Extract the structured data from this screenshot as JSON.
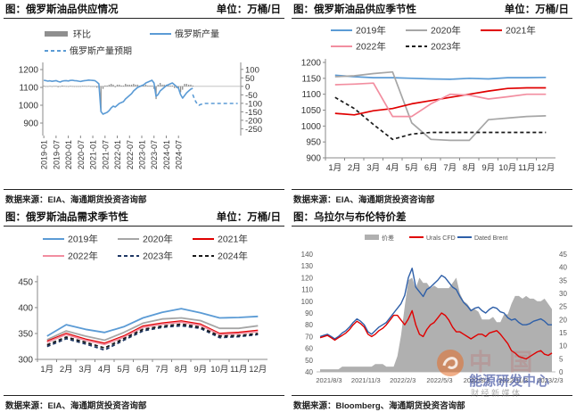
{
  "panels": [
    {
      "title": "图：俄罗斯油品供应情况",
      "unit": "单位：万桶/日",
      "source": "数据来源：EIA、海通期货投资咨询部",
      "chart_data": {
        "type": "bar+line",
        "legend": [
          "环比",
          "俄罗斯产量",
          "俄罗斯产量预期"
        ],
        "legend_position": "top",
        "x_ticks": [
          "2019-01",
          "2019-07",
          "2020-01",
          "2020-07",
          "2021-01",
          "2021-07",
          "2022-01",
          "2022-07",
          "2023-01",
          "2023-07",
          "2024-01",
          "2024-07"
        ],
        "y_left": {
          "ticks": [
            900,
            1000,
            1100,
            1200
          ],
          "lim": [
            830,
            1220
          ]
        },
        "y_right": {
          "ticks": [
            100,
            50,
            0,
            -50,
            -100,
            -150,
            -200,
            -250
          ],
          "lim": [
            -290,
            120
          ]
        },
        "series": [
          {
            "name": "俄罗斯产量",
            "axis": "left",
            "color": "#5b9bd5",
            "style": "solid",
            "values": [
              1140,
              1138,
              1135,
              1137,
              1134,
              1136,
              1138,
              1133,
              1130,
              1135,
              1137,
              1138,
              1136,
              1139,
              1140,
              1138,
              1137,
              1135,
              1133,
              1136,
              1138,
              1139,
              1141,
              1140,
              1139,
              1138,
              1130,
              1120,
              965,
              950,
              955,
              960,
              970,
              985,
              995,
              990,
              1000,
              1010,
              1015,
              1020,
              1035,
              1045,
              1055,
              1065,
              1080,
              1090,
              1100,
              1105,
              1110,
              1115,
              1125,
              1130,
              1135,
              1140,
              1125,
              1050,
              1060,
              1080,
              1090,
              1100,
              1110,
              1115,
              1120,
              1125,
              1115,
              1105,
              1095,
              1060,
              1040,
              1055,
              1070,
              1080,
              1090,
              1095
            ]
          },
          {
            "name": "俄罗斯产量预期",
            "axis": "left",
            "color": "#5b9bd5",
            "style": "dashed",
            "values": [
              1060,
              1030,
              1010,
              1000,
              1005,
              1008,
              1010,
              1010,
              1010,
              1010,
              1010,
              1010,
              1010,
              1010,
              1010,
              1010,
              1010,
              1010,
              1010,
              1010,
              1010,
              1010,
              1010
            ]
          },
          {
            "name": "环比",
            "axis": "right",
            "type": "bar",
            "color": "#8f8f8f",
            "values": [
              4,
              -2,
              -3,
              2,
              -3,
              2,
              2,
              -5,
              -3,
              5,
              2,
              1,
              -2,
              3,
              1,
              -2,
              -1,
              -2,
              -2,
              3,
              2,
              1,
              2,
              -1,
              -1,
              -1,
              -8,
              -10,
              -145,
              -15,
              5,
              5,
              10,
              15,
              10,
              -5,
              10,
              10,
              5,
              5,
              15,
              10,
              10,
              10,
              15,
              10,
              10,
              5,
              5,
              5,
              10,
              5,
              5,
              5,
              -15,
              -75,
              10,
              20,
              10,
              10,
              10,
              5,
              5,
              5,
              -10,
              -10,
              -10,
              -35,
              -20,
              15,
              15,
              10,
              10,
              5
            ]
          }
        ]
      }
    },
    {
      "title": "图：俄罗斯油品供应季节性",
      "unit": "单位：万桶/日",
      "source": "数据来源：EIA、海通期货投资咨询部",
      "chart_data": {
        "type": "line",
        "categories": [
          "1月",
          "2月",
          "3月",
          "4月",
          "5月",
          "6月",
          "7月",
          "8月",
          "9月",
          "10月",
          "11月",
          "12月"
        ],
        "y_ticks": [
          900,
          950,
          1000,
          1050,
          1100,
          1150,
          1200
        ],
        "ylim": [
          900,
          1200
        ],
        "legend_position": "top",
        "series": [
          {
            "name": "2019年",
            "color": "#5b9bd5",
            "dash": "",
            "values": [
              1160,
              1155,
              1152,
              1152,
              1150,
              1148,
              1147,
              1150,
              1148,
              1152,
              1152,
              1153
            ]
          },
          {
            "name": "2020年",
            "color": "#a6a6a6",
            "dash": "",
            "values": [
              1155,
              1158,
              1165,
              1170,
              1010,
              958,
              955,
              955,
              1020,
              1025,
              1030,
              1032
            ]
          },
          {
            "name": "2021年",
            "color": "#e00000",
            "dash": "",
            "values": [
              1040,
              1035,
              1048,
              1055,
              1070,
              1080,
              1090,
              1100,
              1110,
              1118,
              1120,
              1120
            ]
          },
          {
            "name": "2022年",
            "color": "#f28ea0",
            "dash": "",
            "values": [
              1130,
              1132,
              1135,
              1030,
              1030,
              1070,
              1100,
              1097,
              1085,
              1092,
              1100,
              1100
            ]
          },
          {
            "name": "2023年",
            "color": "#1a1a1a",
            "dash": "4,3",
            "values": [
              1090,
              1055,
              1005,
              958,
              975,
              980,
              980,
              980,
              980,
              980,
              980,
              980
            ]
          }
        ]
      }
    },
    {
      "title": "图：俄罗斯油品需求季节性",
      "unit": "单位：万桶/日",
      "source": "数据来源：EIA、海通期货投资咨询部",
      "chart_data": {
        "type": "line",
        "categories": [
          "1月",
          "2月",
          "3月",
          "4月",
          "5月",
          "6月",
          "7月",
          "8月",
          "9月",
          "10月",
          "11月",
          "12月"
        ],
        "y_ticks": [
          300,
          350,
          400,
          450
        ],
        "ylim": [
          300,
          455
        ],
        "legend_position": "top",
        "series": [
          {
            "name": "2019年",
            "color": "#5b9bd5",
            "dash": "",
            "values": [
              345,
              367,
              358,
              352,
              363,
              380,
              391,
              398,
              390,
              380,
              381,
              383
            ]
          },
          {
            "name": "2020年",
            "color": "#a6a6a6",
            "dash": "",
            "values": [
              338,
              355,
              345,
              337,
              352,
              370,
              378,
              380,
              375,
              360,
              360,
              365
            ]
          },
          {
            "name": "2021年",
            "color": "#e00000",
            "dash": "",
            "values": [
              335,
              350,
              339,
              331,
              345,
              364,
              370,
              374,
              368,
              350,
              352,
              356
            ]
          },
          {
            "name": "2022年",
            "color": "#f28ea0",
            "dash": "",
            "values": [
              333,
              348,
              337,
              329,
              343,
              362,
              368,
              372,
              366,
              348,
              350,
              354
            ]
          },
          {
            "name": "2023年",
            "color": "#1f3864",
            "dash": "4,3",
            "values": [
              325,
              340,
              330,
              318,
              337,
              355,
              362,
              365,
              360,
              342,
              344,
              348
            ]
          },
          {
            "name": "2024年",
            "color": "#1a1a1a",
            "dash": "4,3",
            "values": [
              328,
              343,
              333,
              322,
              340,
              358,
              364,
              368,
              362,
              345,
              346,
              350
            ]
          }
        ]
      }
    },
    {
      "title": "图：乌拉尔与布伦特价差",
      "source": "数据来源：Bloomberg、海通期货投资咨询部",
      "chart_data": {
        "type": "area+line",
        "legend": [
          "价差",
          "Urals CFD",
          "Dated Brent"
        ],
        "legend_position": "top",
        "x_ticks": [
          "2021/8/3",
          "2021/11/3",
          "2022/2/3",
          "2022/5/3",
          "2022/8/3",
          "2022/11/3",
          "2023/2/3"
        ],
        "y_left": {
          "ticks": [
            40,
            50,
            60,
            70,
            80,
            90,
            100,
            110,
            120,
            130,
            140
          ],
          "lim": [
            40,
            140
          ]
        },
        "y_right": {
          "ticks": [
            0,
            5,
            10,
            15,
            20,
            25,
            30,
            35,
            40,
            45
          ],
          "lim": [
            0,
            45
          ]
        },
        "series": [
          {
            "name": "Dated Brent",
            "axis": "left",
            "color": "#2e5fa8",
            "values": [
              70,
              71,
              72,
              70,
              68,
              70,
              73,
              75,
              78,
              82,
              85,
              83,
              80,
              74,
              72,
              75,
              78,
              80,
              82,
              86,
              90,
              94,
              98,
              105,
              120,
              128,
              112,
              108,
              104,
              110,
              112,
              115,
              118,
              122,
              120,
              116,
              112,
              110,
              104,
              99,
              96,
              92,
              94,
              95,
              92,
              90,
              93,
              95,
              94,
              91,
              90,
              86,
              84,
              85,
              82,
              80,
              80,
              81,
              83,
              84,
              85,
              83,
              80,
              80
            ]
          },
          {
            "name": "Urals CFD",
            "axis": "left",
            "color": "#e00000",
            "values": [
              69,
              70,
              71,
              69,
              67,
              69,
              71,
              73,
              76,
              80,
              83,
              81,
              78,
              72,
              70,
              72,
              75,
              77,
              80,
              84,
              88,
              88,
              84,
              80,
              85,
              92,
              80,
              72,
              70,
              76,
              80,
              82,
              86,
              90,
              88,
              84,
              78,
              74,
              74,
              72,
              70,
              68,
              70,
              72,
              72,
              70,
              73,
              74,
              75,
              72,
              68,
              64,
              58,
              56,
              53,
              52,
              51,
              53,
              55,
              57,
              58,
              55,
              54,
              56
            ]
          },
          {
            "name": "价差",
            "axis": "right",
            "type": "area",
            "color": "#b0b0b0",
            "values": [
              1,
              1,
              1,
              1,
              1,
              1,
              2,
              2,
              2,
              2,
              2,
              2,
              2,
              2,
              2,
              3,
              3,
              3,
              2,
              2,
              2,
              6,
              14,
              25,
              35,
              36,
              32,
              36,
              34,
              34,
              32,
              33,
              32,
              32,
              32,
              32,
              34,
              36,
              30,
              27,
              26,
              24,
              24,
              23,
              20,
              20,
              20,
              21,
              19,
              19,
              22,
              22,
              26,
              29,
              29,
              28,
              29,
              28,
              28,
              27,
              27,
              28,
              26,
              24
            ]
          }
        ]
      }
    }
  ],
  "watermark": {
    "text": "能源研发中心",
    "sub": "财 经 新 媒 体",
    "bg_text": "中 国"
  }
}
